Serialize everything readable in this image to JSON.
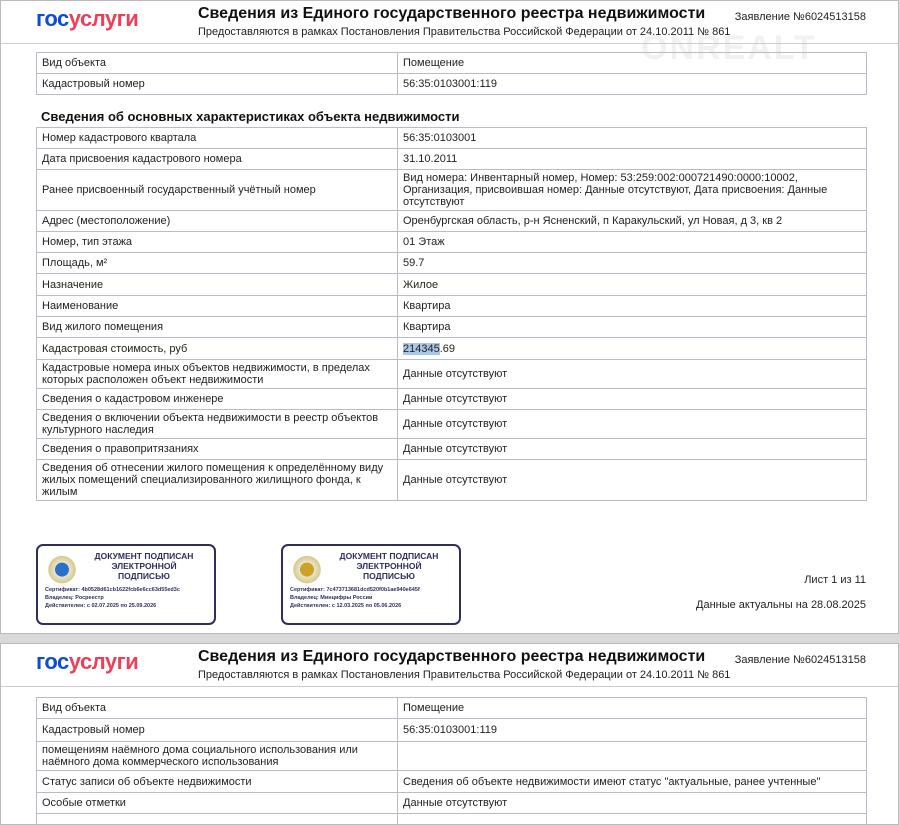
{
  "header": {
    "logo_part1": "гос",
    "logo_part2": "услуги",
    "title": "Сведения из Единого государственного реестра недвижимости",
    "subtitle": "Предоставляются в рамках Постановления Правительства Российской Федерации от 24.10.2011 № 861",
    "request": "Заявление №6024513158"
  },
  "watermark": "ONREALT",
  "top_table": [
    [
      "Вид объекта",
      "Помещение"
    ],
    [
      "Кадастровый номер",
      "56:35:0103001:119"
    ]
  ],
  "section_title": "Сведения об основных характеристиках объекта недвижимости",
  "main_table": [
    [
      "Номер кадастрового квартала",
      "56:35:0103001"
    ],
    [
      "Дата присвоения кадастрового номера",
      "31.10.2011"
    ],
    [
      "Ранее присвоенный государственный учётный номер",
      "Вид номера: Инвентарный номер, Номер: 53:259:002:000721490:0000:10002, Организация, присвоившая номер: Данные отсутствуют, Дата присвоения: Данные отсутствуют"
    ],
    [
      "Адрес (местоположение)",
      "Оренбургская область, р-н Ясненский, п Каракульский, ул Новая, д 3, кв 2"
    ],
    [
      "Номер, тип этажа",
      "01 Этаж"
    ],
    [
      "Площадь, м²",
      "59.7"
    ],
    [
      "Назначение",
      "Жилое"
    ],
    [
      "Наименование",
      "Квартира"
    ],
    [
      "Вид жилого помещения",
      "Квартира"
    ],
    [
      "Кадастровая стоимость, руб",
      "214345.69"
    ],
    [
      "Кадастровые номера иных объектов недвижимости, в пределах которых расположен объект недвижимости",
      "Данные отсутствуют"
    ],
    [
      "Сведения о кадастровом инженере",
      "Данные отсутствуют"
    ],
    [
      "Сведения о включении объекта недвижимости в реестр объектов культурного наследия",
      "Данные отсутствуют"
    ],
    [
      "Сведения о правопритязаниях",
      "Данные отсутствуют"
    ],
    [
      "Сведения об отнесении жилого помещения к определённому виду жилых помещений специализированного жилищного фонда, к жилым",
      "Данные отсутствуют"
    ]
  ],
  "cadastral_value_selected": "214345",
  "cadastral_value_rest": ".69",
  "stamps": [
    {
      "line1": "ДОКУМЕНТ ПОДПИСАН",
      "line2": "ЭЛЕКТРОННОЙ",
      "line3": "ПОДПИСЬЮ",
      "cert": "Сертификат: 4b0528d61cb1622fcb6e6cc63d55ed3c",
      "owner": "Владелец: Росреестр",
      "valid": "Действителен: с 02.07.2025 по 25.09.2026",
      "color": "#2a6fc9"
    },
    {
      "line1": "ДОКУМЕНТ ПОДПИСАН",
      "line2": "ЭЛЕКТРОННОЙ",
      "line3": "ПОДПИСЬЮ",
      "cert": "Сертификат: 7c473713681dcd520f0b1ae940e645f",
      "owner": "Владелец: Минцифры России",
      "valid": "Действителен: с 12.03.2025 по 05.06.2026",
      "color": "#c9a227"
    }
  ],
  "footer": {
    "sheet": "Лист 1 из 11",
    "actual": "Данные актуальны на 28.08.2025"
  },
  "page2_table": [
    [
      "Вид объекта",
      "Помещение"
    ],
    [
      "Кадастровый номер",
      "56:35:0103001:119"
    ],
    [
      "помещениям наёмного дома социального использования или наёмного дома коммерческого использования",
      ""
    ],
    [
      "Статус записи об объекте недвижимости",
      "Сведения об объекте недвижимости имеют статус \"актуальные, ранее учтенные\""
    ],
    [
      "Особые отметки",
      "Данные отсутствуют"
    ],
    [
      "",
      ""
    ]
  ]
}
